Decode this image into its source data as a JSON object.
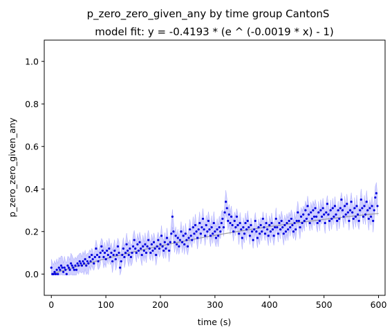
{
  "chart_data": {
    "type": "scatter",
    "title": "p_zero_zero_given_any by time group CantonS",
    "subtitle": "model fit: y = -0.4193 * (e ^ (-0.0019 * x) - 1)",
    "xlabel": "time (s)",
    "ylabel": "p_zero_zero_given_any",
    "xlim": [
      -13,
      612
    ],
    "ylim": [
      -0.1,
      1.1
    ],
    "xticks": [
      0,
      100,
      200,
      300,
      400,
      500,
      600
    ],
    "yticks": [
      0.0,
      0.2,
      0.4,
      0.6,
      0.8,
      1.0
    ],
    "xtick_labels": [
      "0",
      "100",
      "200",
      "300",
      "400",
      "500",
      "600"
    ],
    "ytick_labels": [
      "0.0",
      "0.2",
      "0.4",
      "0.6",
      "0.8",
      "1.0"
    ],
    "grid": false,
    "fit": {
      "a": -0.4193,
      "b": -0.0019,
      "color": "#888888"
    },
    "series": [
      {
        "marker_color": "#0000dd",
        "band_color": "#6a6aff",
        "points": [
          [
            0,
            0.03
          ],
          [
            2,
            0.0
          ],
          [
            4,
            0.0
          ],
          [
            6,
            0.01
          ],
          [
            8,
            0.0
          ],
          [
            10,
            0.02
          ],
          [
            12,
            0.0
          ],
          [
            14,
            0.03
          ],
          [
            16,
            0.02
          ],
          [
            18,
            0.04
          ],
          [
            20,
            0.03
          ],
          [
            22,
            0.01
          ],
          [
            24,
            0.03
          ],
          [
            26,
            0.02
          ],
          [
            28,
            0.0
          ],
          [
            30,
            0.04
          ],
          [
            32,
            0.03
          ],
          [
            34,
            0.02
          ],
          [
            36,
            0.05
          ],
          [
            38,
            0.04
          ],
          [
            40,
            0.03
          ],
          [
            42,
            0.02
          ],
          [
            44,
            0.04
          ],
          [
            46,
            0.02
          ],
          [
            48,
            0.05
          ],
          [
            50,
            0.04
          ],
          [
            52,
            0.06
          ],
          [
            54,
            0.05
          ],
          [
            56,
            0.04
          ],
          [
            58,
            0.06
          ],
          [
            60,
            0.05
          ],
          [
            62,
            0.07
          ],
          [
            64,
            0.04
          ],
          [
            66,
            0.06
          ],
          [
            68,
            0.05
          ],
          [
            70,
            0.08
          ],
          [
            72,
            0.06
          ],
          [
            74,
            0.09
          ],
          [
            76,
            0.07
          ],
          [
            78,
            0.05
          ],
          [
            80,
            0.08
          ],
          [
            82,
            0.12
          ],
          [
            84,
            0.09
          ],
          [
            86,
            0.06
          ],
          [
            88,
            0.08
          ],
          [
            90,
            0.1
          ],
          [
            92,
            0.13
          ],
          [
            94,
            0.11
          ],
          [
            96,
            0.08
          ],
          [
            98,
            0.1
          ],
          [
            100,
            0.07
          ],
          [
            102,
            0.11
          ],
          [
            104,
            0.09
          ],
          [
            106,
            0.12
          ],
          [
            108,
            0.08
          ],
          [
            110,
            0.1
          ],
          [
            112,
            0.06
          ],
          [
            114,
            0.09
          ],
          [
            116,
            0.11
          ],
          [
            118,
            0.07
          ],
          [
            120,
            0.09
          ],
          [
            122,
            0.13
          ],
          [
            124,
            0.1
          ],
          [
            126,
            0.03
          ],
          [
            128,
            0.06
          ],
          [
            130,
            0.09
          ],
          [
            132,
            0.12
          ],
          [
            134,
            0.08
          ],
          [
            136,
            0.1
          ],
          [
            138,
            0.14
          ],
          [
            140,
            0.11
          ],
          [
            142,
            0.09
          ],
          [
            144,
            0.12
          ],
          [
            146,
            0.08
          ],
          [
            148,
            0.1
          ],
          [
            150,
            0.13
          ],
          [
            152,
            0.16
          ],
          [
            154,
            0.12
          ],
          [
            156,
            0.1
          ],
          [
            158,
            0.14
          ],
          [
            160,
            0.11
          ],
          [
            162,
            0.15
          ],
          [
            164,
            0.12
          ],
          [
            166,
            0.09
          ],
          [
            168,
            0.13
          ],
          [
            170,
            0.11
          ],
          [
            172,
            0.14
          ],
          [
            174,
            0.1
          ],
          [
            176,
            0.13
          ],
          [
            178,
            0.16
          ],
          [
            180,
            0.12
          ],
          [
            182,
            0.1
          ],
          [
            184,
            0.14
          ],
          [
            186,
            0.11
          ],
          [
            188,
            0.15
          ],
          [
            190,
            0.12
          ],
          [
            192,
            0.09
          ],
          [
            194,
            0.13
          ],
          [
            196,
            0.16
          ],
          [
            198,
            0.12
          ],
          [
            200,
            0.14
          ],
          [
            202,
            0.18
          ],
          [
            204,
            0.13
          ],
          [
            206,
            0.11
          ],
          [
            208,
            0.15
          ],
          [
            210,
            0.12
          ],
          [
            212,
            0.17
          ],
          [
            214,
            0.14
          ],
          [
            216,
            0.11
          ],
          [
            218,
            0.15
          ],
          [
            220,
            0.19
          ],
          [
            222,
            0.27
          ],
          [
            224,
            0.2
          ],
          [
            226,
            0.15
          ],
          [
            228,
            0.18
          ],
          [
            230,
            0.14
          ],
          [
            232,
            0.17
          ],
          [
            234,
            0.13
          ],
          [
            236,
            0.16
          ],
          [
            238,
            0.2
          ],
          [
            240,
            0.15
          ],
          [
            242,
            0.18
          ],
          [
            244,
            0.14
          ],
          [
            246,
            0.19
          ],
          [
            248,
            0.16
          ],
          [
            250,
            0.13
          ],
          [
            252,
            0.17
          ],
          [
            254,
            0.21
          ],
          [
            256,
            0.18
          ],
          [
            258,
            0.16
          ],
          [
            260,
            0.22
          ],
          [
            262,
            0.19
          ],
          [
            264,
            0.23
          ],
          [
            266,
            0.2
          ],
          [
            268,
            0.17
          ],
          [
            270,
            0.21
          ],
          [
            272,
            0.24
          ],
          [
            274,
            0.19
          ],
          [
            276,
            0.22
          ],
          [
            278,
            0.26
          ],
          [
            280,
            0.21
          ],
          [
            282,
            0.18
          ],
          [
            284,
            0.23
          ],
          [
            286,
            0.2
          ],
          [
            288,
            0.25
          ],
          [
            290,
            0.21
          ],
          [
            292,
            0.18
          ],
          [
            294,
            0.22
          ],
          [
            296,
            0.19
          ],
          [
            298,
            0.24
          ],
          [
            300,
            0.2
          ],
          [
            302,
            0.17
          ],
          [
            304,
            0.21
          ],
          [
            306,
            0.18
          ],
          [
            308,
            0.22
          ],
          [
            310,
            0.2
          ],
          [
            312,
            0.24
          ],
          [
            314,
            0.26
          ],
          [
            316,
            0.22
          ],
          [
            318,
            0.29
          ],
          [
            320,
            0.34
          ],
          [
            322,
            0.31
          ],
          [
            324,
            0.25
          ],
          [
            326,
            0.28
          ],
          [
            328,
            0.24
          ],
          [
            330,
            0.27
          ],
          [
            332,
            0.23
          ],
          [
            334,
            0.2
          ],
          [
            336,
            0.25
          ],
          [
            338,
            0.22
          ],
          [
            340,
            0.27
          ],
          [
            342,
            0.23
          ],
          [
            344,
            0.19
          ],
          [
            346,
            0.24
          ],
          [
            348,
            0.21
          ],
          [
            350,
            0.17
          ],
          [
            352,
            0.22
          ],
          [
            354,
            0.19
          ],
          [
            356,
            0.24
          ],
          [
            358,
            0.21
          ],
          [
            360,
            0.25
          ],
          [
            362,
            0.22
          ],
          [
            364,
            0.18
          ],
          [
            366,
            0.23
          ],
          [
            368,
            0.2
          ],
          [
            370,
            0.16
          ],
          [
            372,
            0.21
          ],
          [
            374,
            0.25
          ],
          [
            376,
            0.2
          ],
          [
            378,
            0.17
          ],
          [
            380,
            0.22
          ],
          [
            382,
            0.19
          ],
          [
            384,
            0.23
          ],
          [
            386,
            0.2
          ],
          [
            388,
            0.26
          ],
          [
            390,
            0.22
          ],
          [
            392,
            0.19
          ],
          [
            394,
            0.24
          ],
          [
            396,
            0.21
          ],
          [
            398,
            0.18
          ],
          [
            400,
            0.23
          ],
          [
            402,
            0.2
          ],
          [
            404,
            0.24
          ],
          [
            406,
            0.21
          ],
          [
            408,
            0.18
          ],
          [
            410,
            0.22
          ],
          [
            412,
            0.26
          ],
          [
            414,
            0.22
          ],
          [
            416,
            0.19
          ],
          [
            418,
            0.24
          ],
          [
            420,
            0.21
          ],
          [
            422,
            0.25
          ],
          [
            424,
            0.22
          ],
          [
            426,
            0.19
          ],
          [
            428,
            0.23
          ],
          [
            430,
            0.2
          ],
          [
            432,
            0.24
          ],
          [
            434,
            0.21
          ],
          [
            436,
            0.25
          ],
          [
            438,
            0.22
          ],
          [
            440,
            0.26
          ],
          [
            442,
            0.23
          ],
          [
            444,
            0.2
          ],
          [
            446,
            0.24
          ],
          [
            448,
            0.21
          ],
          [
            450,
            0.25
          ],
          [
            452,
            0.29
          ],
          [
            454,
            0.25
          ],
          [
            456,
            0.22
          ],
          [
            458,
            0.27
          ],
          [
            460,
            0.24
          ],
          [
            462,
            0.28
          ],
          [
            464,
            0.25
          ],
          [
            466,
            0.3
          ],
          [
            468,
            0.26
          ],
          [
            470,
            0.32
          ],
          [
            472,
            0.28
          ],
          [
            474,
            0.24
          ],
          [
            476,
            0.29
          ],
          [
            478,
            0.26
          ],
          [
            480,
            0.3
          ],
          [
            482,
            0.27
          ],
          [
            484,
            0.31
          ],
          [
            486,
            0.27
          ],
          [
            488,
            0.24
          ],
          [
            490,
            0.29
          ],
          [
            492,
            0.25
          ],
          [
            494,
            0.3
          ],
          [
            496,
            0.27
          ],
          [
            498,
            0.31
          ],
          [
            500,
            0.28
          ],
          [
            502,
            0.24
          ],
          [
            504,
            0.29
          ],
          [
            506,
            0.33
          ],
          [
            508,
            0.28
          ],
          [
            510,
            0.25
          ],
          [
            512,
            0.3
          ],
          [
            514,
            0.26
          ],
          [
            516,
            0.31
          ],
          [
            518,
            0.27
          ],
          [
            520,
            0.32
          ],
          [
            522,
            0.28
          ],
          [
            524,
            0.25
          ],
          [
            526,
            0.3
          ],
          [
            528,
            0.26
          ],
          [
            530,
            0.31
          ],
          [
            532,
            0.35
          ],
          [
            534,
            0.3
          ],
          [
            536,
            0.27
          ],
          [
            538,
            0.32
          ],
          [
            540,
            0.28
          ],
          [
            542,
            0.33
          ],
          [
            544,
            0.29
          ],
          [
            546,
            0.25
          ],
          [
            548,
            0.3
          ],
          [
            550,
            0.34
          ],
          [
            552,
            0.29
          ],
          [
            554,
            0.26
          ],
          [
            556,
            0.31
          ],
          [
            558,
            0.27
          ],
          [
            560,
            0.32
          ],
          [
            562,
            0.28
          ],
          [
            564,
            0.25
          ],
          [
            566,
            0.3
          ],
          [
            568,
            0.35
          ],
          [
            570,
            0.31
          ],
          [
            572,
            0.27
          ],
          [
            574,
            0.32
          ],
          [
            576,
            0.28
          ],
          [
            578,
            0.34
          ],
          [
            580,
            0.3
          ],
          [
            582,
            0.26
          ],
          [
            584,
            0.31
          ],
          [
            586,
            0.27
          ],
          [
            588,
            0.32
          ],
          [
            590,
            0.25
          ],
          [
            592,
            0.3
          ],
          [
            594,
            0.36
          ],
          [
            596,
            0.38
          ],
          [
            598,
            0.32
          ]
        ]
      }
    ]
  }
}
